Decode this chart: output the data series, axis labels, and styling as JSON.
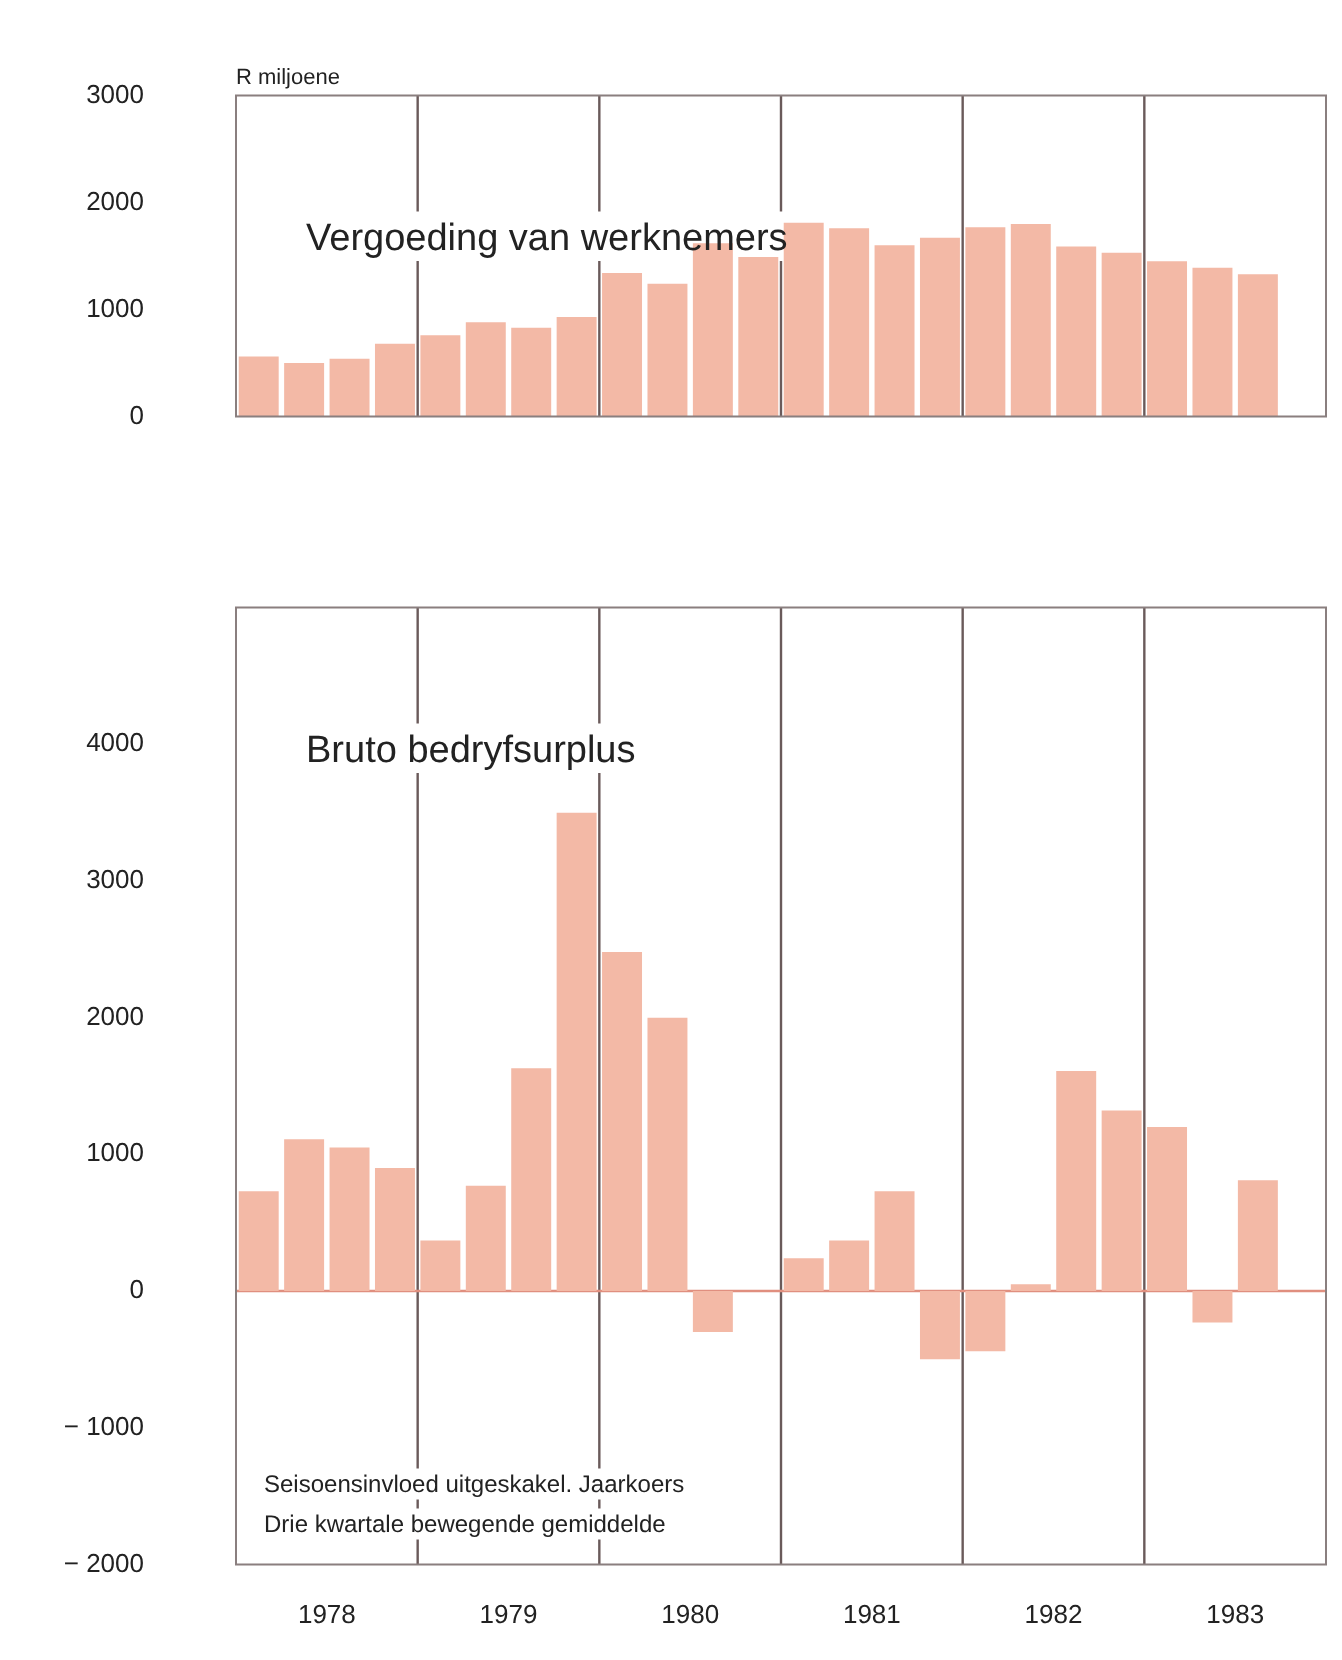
{
  "chart_data": [
    {
      "type": "bar",
      "title": "Vergoeding van werknemers",
      "ylabel": "R miljoene",
      "x": [
        1978.125,
        1978.375,
        1978.625,
        1978.875,
        1979.125,
        1979.375,
        1979.625,
        1979.875,
        1980.125,
        1980.375,
        1980.625,
        1980.875,
        1981.125,
        1981.375,
        1981.625,
        1981.875,
        1982.125,
        1982.375,
        1982.625,
        1982.875,
        1983.125,
        1983.375,
        1983.625
      ],
      "values": [
        560,
        500,
        540,
        680,
        760,
        880,
        830,
        930,
        1340,
        1240,
        1620,
        1490,
        1810,
        1760,
        1600,
        1670,
        1770,
        1800,
        1590,
        1530,
        1450,
        1390,
        1330
      ],
      "color": "#f3b9a6",
      "xlim": [
        1978,
        1984
      ],
      "ylim": [
        0,
        3000
      ],
      "yticks": [
        0,
        1000,
        2000,
        3000
      ],
      "tick_labels": "y",
      "ref_lines": [
        {
          "axis": "x",
          "value": 1979,
          "color": "#6a5a5a"
        },
        {
          "axis": "x",
          "value": 1980,
          "color": "#6a5a5a"
        },
        {
          "axis": "x",
          "value": 1981,
          "color": "#6a5a5a"
        },
        {
          "axis": "x",
          "value": 1982,
          "color": "#6a5a5a"
        },
        {
          "axis": "x",
          "value": 1983,
          "color": "#6a5a5a"
        }
      ]
    },
    {
      "type": "bar",
      "title": "Bruto bedryfsurplus",
      "x": [
        1978.125,
        1978.375,
        1978.625,
        1978.875,
        1979.125,
        1979.375,
        1979.625,
        1979.875,
        1980.125,
        1980.375,
        1980.625,
        1980.875,
        1981.125,
        1981.375,
        1981.625,
        1981.875,
        1982.125,
        1982.375,
        1982.625,
        1982.875,
        1983.125,
        1983.375,
        1983.625
      ],
      "values": [
        730,
        1110,
        1050,
        900,
        370,
        770,
        1630,
        3500,
        2480,
        2000,
        -300,
        0,
        240,
        370,
        730,
        -500,
        -440,
        50,
        1610,
        1320,
        1200,
        -230,
        810
      ],
      "color": "#f3b9a6",
      "xlim": [
        1978,
        1984
      ],
      "xticks": [
        {
          "value": 1978.5,
          "label": "1978"
        },
        {
          "value": 1979.5,
          "label": "1979"
        },
        {
          "value": 1980.5,
          "label": "1980"
        },
        {
          "value": 1981.5,
          "label": "1981"
        },
        {
          "value": 1982.5,
          "label": "1982"
        },
        {
          "value": 1983.5,
          "label": "1983"
        }
      ],
      "ylim": [
        -2000,
        5000
      ],
      "yticks": [
        -2000,
        -1000,
        0,
        1000,
        2000,
        3000,
        4000
      ],
      "ref_lines": [
        {
          "axis": "x",
          "value": 1979,
          "color": "#6a5a5a"
        },
        {
          "axis": "x",
          "value": 1980,
          "color": "#6a5a5a"
        },
        {
          "axis": "x",
          "value": 1981,
          "color": "#6a5a5a"
        },
        {
          "axis": "x",
          "value": 1982,
          "color": "#6a5a5a"
        },
        {
          "axis": "x",
          "value": 1983,
          "color": "#6a5a5a"
        },
        {
          "axis": "y",
          "value": 0,
          "color": "#e08f7f"
        }
      ],
      "annotations": [
        "Seisoensinvloed uitgeskakel. Jaarkoers",
        "Drie kwartale bewegende gemiddelde"
      ]
    }
  ]
}
